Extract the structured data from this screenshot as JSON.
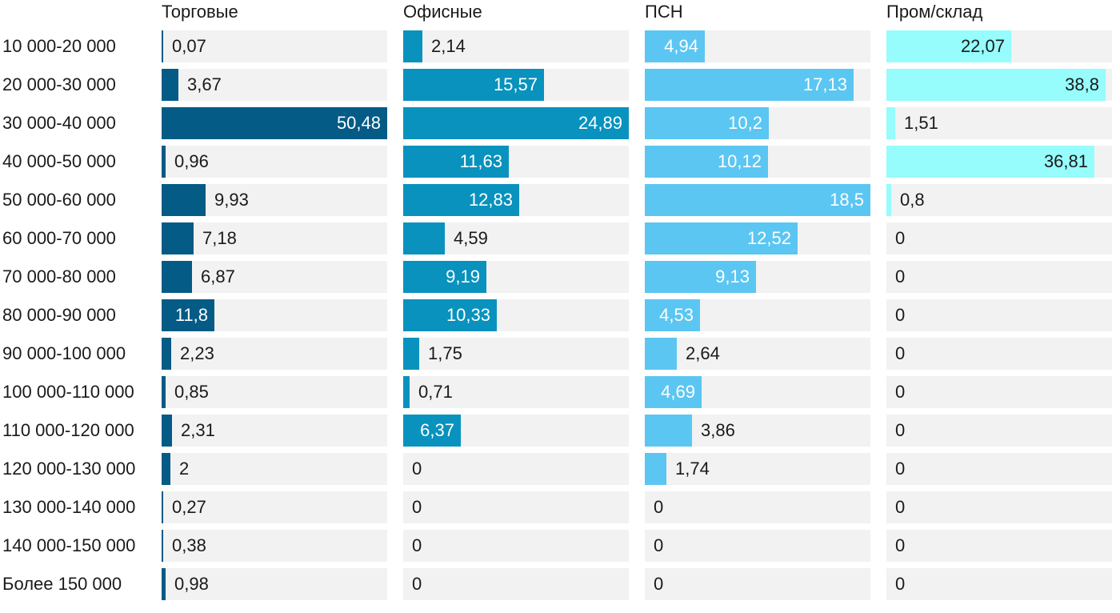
{
  "chart_data": {
    "type": "bar",
    "orientation": "horizontal",
    "layout": "small-multiples",
    "categories": [
      "10 000-20 000",
      "20 000-30 000",
      "30 000-40 000",
      "40 000-50 000",
      "50 000-60 000",
      "60 000-70 000",
      "70 000-80 000",
      "80 000-90 000",
      "90 000-100 000",
      "100 000-110 000",
      "110 000-120 000",
      "120 000-130 000",
      "130 000-140 000",
      "140 000-150 000",
      "Более 150 000"
    ],
    "series": [
      {
        "name": "Торговые",
        "color": "#045b85",
        "max": 50.48,
        "values": [
          0.07,
          3.67,
          50.48,
          0.96,
          9.93,
          7.18,
          6.87,
          11.8,
          2.23,
          0.85,
          2.31,
          2,
          0.27,
          0.38,
          0.98
        ],
        "labels": [
          "0,07",
          "3,67",
          "50,48",
          "0,96",
          "9,93",
          "7,18",
          "6,87",
          "11,8",
          "2,23",
          "0,85",
          "2,31",
          "2",
          "0,27",
          "0,38",
          "0,98"
        ],
        "labels_inside": [
          false,
          false,
          true,
          false,
          false,
          false,
          false,
          true,
          false,
          false,
          false,
          false,
          false,
          false,
          false
        ]
      },
      {
        "name": "Офисные",
        "color": "#0892bd",
        "max": 24.89,
        "values": [
          2.14,
          15.57,
          24.89,
          11.63,
          12.83,
          4.59,
          9.19,
          10.33,
          1.75,
          0.71,
          6.37,
          0,
          0,
          0,
          0
        ],
        "labels": [
          "2,14",
          "15,57",
          "24,89",
          "11,63",
          "12,83",
          "4,59",
          "9,19",
          "10,33",
          "1,75",
          "0,71",
          "6,37",
          "0",
          "0",
          "0",
          "0"
        ],
        "labels_inside": [
          false,
          true,
          true,
          true,
          true,
          false,
          true,
          true,
          false,
          false,
          true,
          false,
          false,
          false,
          false
        ]
      },
      {
        "name": "ПСН",
        "color": "#5bc6f2",
        "max": 18.5,
        "values": [
          4.94,
          17.13,
          10.2,
          10.12,
          18.5,
          12.52,
          9.13,
          4.53,
          2.64,
          4.69,
          3.86,
          1.74,
          0,
          0,
          0
        ],
        "labels": [
          "4,94",
          "17,13",
          "10,2",
          "10,12",
          "18,5",
          "12,52",
          "9,13",
          "4,53",
          "2,64",
          "4,69",
          "3,86",
          "1,74",
          "0",
          "0",
          "0"
        ],
        "labels_inside": [
          true,
          true,
          true,
          true,
          true,
          true,
          true,
          true,
          false,
          true,
          false,
          false,
          false,
          false,
          false
        ]
      },
      {
        "name": "Пром/склад",
        "color": "#96fcfc",
        "max": 40.0,
        "values": [
          22.07,
          38.8,
          1.51,
          36.81,
          0.8,
          0,
          0,
          0,
          0,
          0,
          0,
          0,
          0,
          0,
          0
        ],
        "labels": [
          "22,07",
          "38,8",
          "1,51",
          "36,81",
          "0,8",
          "0",
          "0",
          "0",
          "0",
          "0",
          "0",
          "0",
          "0",
          "0",
          "0"
        ],
        "labels_inside": [
          true,
          true,
          false,
          true,
          false,
          false,
          false,
          false,
          false,
          false,
          false,
          false,
          false,
          false,
          false
        ]
      }
    ],
    "title": "",
    "xlabel": "",
    "ylabel": "",
    "legend": "none",
    "grid": false
  }
}
